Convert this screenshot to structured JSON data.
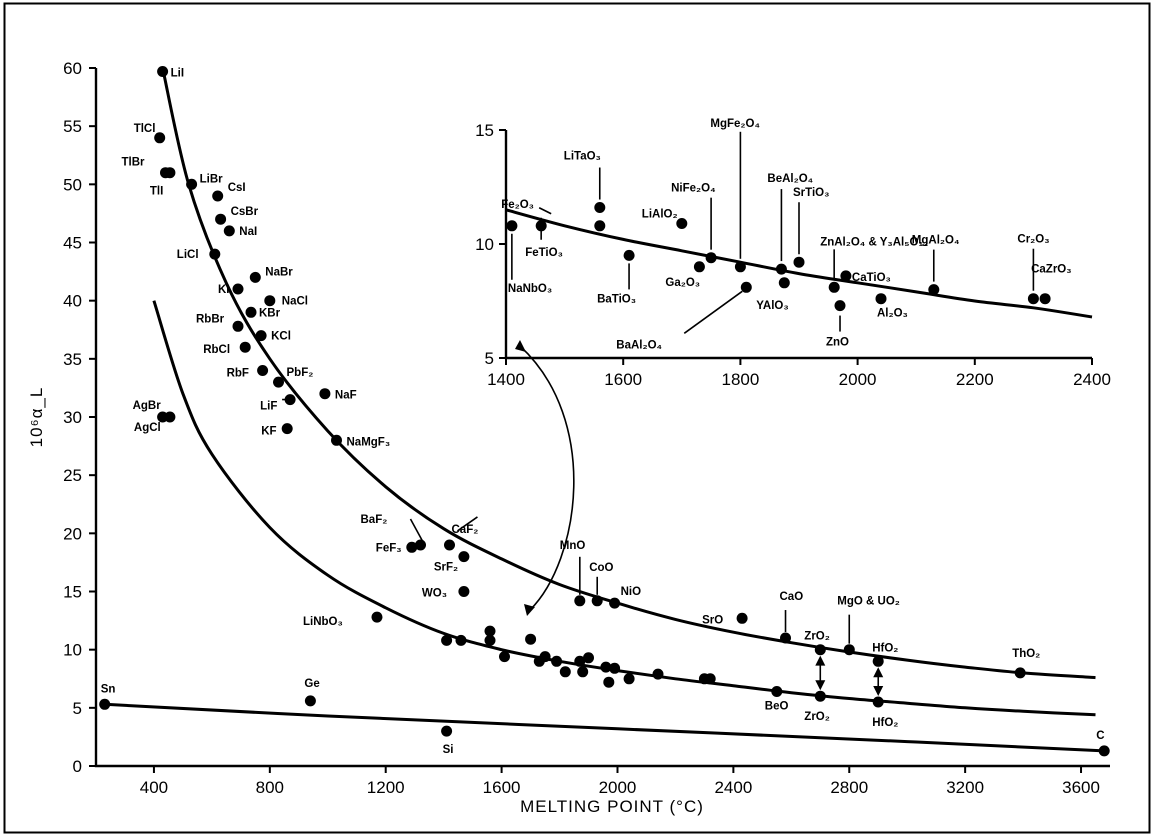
{
  "chart_data": [
    {
      "type": "scatter",
      "title": "",
      "xlabel": "MELTING POINT (°C)",
      "ylabel": "10⁶α_L",
      "xlim": [
        200,
        3700
      ],
      "ylim": [
        0,
        60
      ],
      "x_ticks": [
        "400",
        "800",
        "1200",
        "1600",
        "2000",
        "2400",
        "2800",
        "3200",
        "3600"
      ],
      "y_ticks": [
        "0",
        "5",
        "10",
        "15",
        "20",
        "25",
        "30",
        "35",
        "40",
        "45",
        "50",
        "55",
        "60"
      ],
      "grid": false,
      "series": [
        {
          "points": [
            {
              "x": 430,
              "y": 59.7,
              "label": "LiI"
            },
            {
              "x": 420,
              "y": 54,
              "label": "TlCl"
            },
            {
              "x": 440,
              "y": 51,
              "label": "TlBr"
            },
            {
              "x": 455,
              "y": 51,
              "label": "TlI"
            },
            {
              "x": 530,
              "y": 50,
              "label": "LiBr"
            },
            {
              "x": 620,
              "y": 49,
              "label": "CsI"
            },
            {
              "x": 630,
              "y": 47,
              "label": "CsBr"
            },
            {
              "x": 660,
              "y": 46,
              "label": "NaI"
            },
            {
              "x": 610,
              "y": 44,
              "label": "LiCl"
            },
            {
              "x": 690,
              "y": 41,
              "label": "KI"
            },
            {
              "x": 750,
              "y": 42,
              "label": "NaBr"
            },
            {
              "x": 800,
              "y": 40,
              "label": "NaCl"
            },
            {
              "x": 735,
              "y": 39,
              "label": "KBr"
            },
            {
              "x": 690,
              "y": 37.8,
              "label": "RbBr"
            },
            {
              "x": 770,
              "y": 37,
              "label": "KCl"
            },
            {
              "x": 715,
              "y": 36,
              "label": "RbCl"
            },
            {
              "x": 775,
              "y": 34,
              "label": "RbF"
            },
            {
              "x": 830,
              "y": 33,
              "label": "PbF2"
            },
            {
              "x": 990,
              "y": 32,
              "label": "NaF"
            },
            {
              "x": 870,
              "y": 31.5,
              "label": "LiF"
            },
            {
              "x": 860,
              "y": 29,
              "label": "KF"
            },
            {
              "x": 430,
              "y": 30,
              "label": "AgBr"
            },
            {
              "x": 455,
              "y": 30,
              "label": "AgCl"
            },
            {
              "x": 1030,
              "y": 28,
              "label": "NaMgF3"
            },
            {
              "x": 1320,
              "y": 19,
              "label": "BaF2"
            },
            {
              "x": 1290,
              "y": 18.8,
              "label": "FeF3"
            },
            {
              "x": 1420,
              "y": 19,
              "label": "CaF2"
            },
            {
              "x": 1470,
              "y": 18,
              "label": "SrF2"
            },
            {
              "x": 1470,
              "y": 15,
              "label": "WO3"
            },
            {
              "x": 1170,
              "y": 12.8,
              "label": "LiNbO3"
            },
            {
              "x": 1870,
              "y": 14.2,
              "label": "MnO"
            },
            {
              "x": 1930,
              "y": 14.2,
              "label": "CoO"
            },
            {
              "x": 1990,
              "y": 14,
              "label": "NiO"
            },
            {
              "x": 2430,
              "y": 12.7,
              "label": "SrO"
            },
            {
              "x": 2580,
              "y": 11,
              "label": "CaO"
            },
            {
              "x": 2800,
              "y": 10,
              "label": "MgO & UO2"
            },
            {
              "x": 2700,
              "y": 10,
              "label": "ZrO2"
            },
            {
              "x": 2900,
              "y": 9,
              "label": "HfO2"
            },
            {
              "x": 3390,
              "y": 8,
              "label": "ThO2"
            },
            {
              "x": 2700,
              "y": 6,
              "label": "ZrO2"
            },
            {
              "x": 2900,
              "y": 5.5,
              "label": "HfO2"
            },
            {
              "x": 2550,
              "y": 6.4,
              "label": "BeO"
            },
            {
              "x": 230,
              "y": 5.3,
              "label": "Sn"
            },
            {
              "x": 940,
              "y": 5.6,
              "label": "Ge"
            },
            {
              "x": 1410,
              "y": 3,
              "label": "Si"
            },
            {
              "x": 3680,
              "y": 1.3,
              "label": "C"
            },
            {
              "x": 1410,
              "y": 10.8,
              "label": ""
            },
            {
              "x": 1460,
              "y": 10.8,
              "label": ""
            },
            {
              "x": 1560,
              "y": 10.8,
              "label": ""
            },
            {
              "x": 1560,
              "y": 11.6,
              "label": ""
            },
            {
              "x": 1610,
              "y": 9.4,
              "label": ""
            },
            {
              "x": 1700,
              "y": 10.9,
              "label": ""
            },
            {
              "x": 1730,
              "y": 9,
              "label": ""
            },
            {
              "x": 1750,
              "y": 9.4,
              "label": ""
            },
            {
              "x": 1790,
              "y": 9,
              "label": ""
            },
            {
              "x": 1820,
              "y": 8.1,
              "label": ""
            },
            {
              "x": 1870,
              "y": 9,
              "label": ""
            },
            {
              "x": 1880,
              "y": 8.1,
              "label": ""
            },
            {
              "x": 1900,
              "y": 9.3,
              "label": ""
            },
            {
              "x": 1960,
              "y": 8.5,
              "label": ""
            },
            {
              "x": 1970,
              "y": 7.2,
              "label": ""
            },
            {
              "x": 1990,
              "y": 8.4,
              "label": ""
            },
            {
              "x": 2040,
              "y": 7.5,
              "label": ""
            },
            {
              "x": 2140,
              "y": 7.9,
              "label": ""
            },
            {
              "x": 2300,
              "y": 7.5,
              "label": ""
            },
            {
              "x": 2320,
              "y": 7.5,
              "label": ""
            }
          ]
        },
        {
          "name": "",
          "type": "line",
          "points": [
            [
              430,
              60
            ],
            [
              520,
              50
            ],
            [
              650,
              41.5
            ],
            [
              800,
              35
            ],
            [
              1000,
              28.8
            ],
            [
              1200,
              24
            ],
            [
              1400,
              20.4
            ],
            [
              1600,
              17.8
            ],
            [
              1800,
              15.6
            ],
            [
              2000,
              14
            ],
            [
              2200,
              12.6
            ],
            [
              2400,
              11.5
            ],
            [
              2600,
              10.6
            ],
            [
              2800,
              9.8
            ],
            [
              3000,
              9.1
            ],
            [
              3200,
              8.5
            ],
            [
              3400,
              8
            ],
            [
              3650,
              7.6
            ]
          ]
        },
        {
          "name": "",
          "type": "line",
          "points": [
            [
              400,
              40
            ],
            [
              500,
              32
            ],
            [
              600,
              26.8
            ],
            [
              800,
              20.5
            ],
            [
              1000,
              16.4
            ],
            [
              1200,
              13.6
            ],
            [
              1400,
              11.4
            ],
            [
              1600,
              10
            ],
            [
              1800,
              9
            ],
            [
              2000,
              8.2
            ],
            [
              2200,
              7.5
            ],
            [
              2400,
              6.9
            ],
            [
              2600,
              6.3
            ],
            [
              2800,
              5.8
            ],
            [
              3000,
              5.4
            ],
            [
              3200,
              5
            ],
            [
              3400,
              4.7
            ],
            [
              3650,
              4.4
            ]
          ]
        },
        {
          "name": "",
          "type": "line",
          "points": [
            [
              230,
              5.3
            ],
            [
              1000,
              4.3
            ],
            [
              2000,
              3.2
            ],
            [
              3000,
              2.1
            ],
            [
              3680,
              1.3
            ]
          ]
        }
      ]
    },
    {
      "type": "scatter",
      "title": "",
      "xlim": [
        1400,
        2400
      ],
      "ylim": [
        5,
        15
      ],
      "x_ticks": [
        "1400",
        "1600",
        "1800",
        "2000",
        "2200",
        "2400"
      ],
      "y_ticks": [
        "5",
        "10",
        "15"
      ],
      "series": [
        {
          "points": [
            {
              "x": 1410,
              "y": 10.8,
              "label": "NaNbO3"
            },
            {
              "x": 1460,
              "y": 10.8,
              "label": "Fe2O3"
            },
            {
              "x": 1460,
              "y": 10.8,
              "label": "FeTiO3"
            },
            {
              "x": 1560,
              "y": 11.6,
              "label": "LiTaO3"
            },
            {
              "x": 1560,
              "y": 10.8,
              "label": ""
            },
            {
              "x": 1610,
              "y": 9.5,
              "label": "BaTiO3"
            },
            {
              "x": 1700,
              "y": 10.9,
              "label": "LiAlO2"
            },
            {
              "x": 1730,
              "y": 9.0,
              "label": "Ga2O3"
            },
            {
              "x": 1750,
              "y": 9.4,
              "label": "NiFe2O4"
            },
            {
              "x": 1800,
              "y": 9.0,
              "label": "MgFe2O4"
            },
            {
              "x": 1810,
              "y": 8.1,
              "label": "BaAl2O4"
            },
            {
              "x": 1870,
              "y": 8.9,
              "label": "BeAl2O4"
            },
            {
              "x": 1875,
              "y": 8.3,
              "label": "YAlO3"
            },
            {
              "x": 1900,
              "y": 9.2,
              "label": "SrTiO3"
            },
            {
              "x": 1960,
              "y": 8.1,
              "label": "ZnAl2O4 & Y3Al5O12"
            },
            {
              "x": 1970,
              "y": 7.3,
              "label": "ZnO"
            },
            {
              "x": 1980,
              "y": 8.6,
              "label": "CaTiO3"
            },
            {
              "x": 2040,
              "y": 7.6,
              "label": "Al2O3"
            },
            {
              "x": 2130,
              "y": 8.0,
              "label": "MgAl2O4"
            },
            {
              "x": 2300,
              "y": 7.6,
              "label": "Cr2O3"
            },
            {
              "x": 2320,
              "y": 7.6,
              "label": "CaZrO3"
            }
          ]
        },
        {
          "name": "",
          "type": "line",
          "points": [
            [
              1400,
              11.5
            ],
            [
              1500,
              10.8
            ],
            [
              1600,
              10.2
            ],
            [
              1700,
              9.7
            ],
            [
              1800,
              9.2
            ],
            [
              1900,
              8.7
            ],
            [
              2000,
              8.3
            ],
            [
              2100,
              7.9
            ],
            [
              2200,
              7.5
            ],
            [
              2300,
              7.2
            ],
            [
              2400,
              6.8
            ]
          ]
        }
      ]
    }
  ]
}
